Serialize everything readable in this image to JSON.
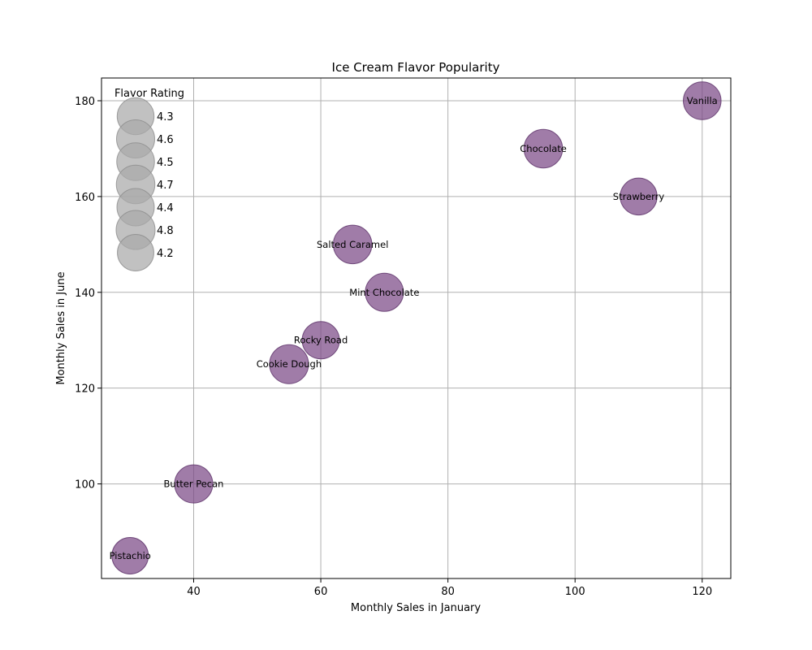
{
  "chart_data": {
    "type": "scatter",
    "title": "Ice Cream Flavor Popularity",
    "xlabel": "Monthly Sales in January",
    "ylabel": "Monthly Sales in June",
    "xlim": [
      25.5,
      124.5
    ],
    "ylim": [
      80.25,
      184.75
    ],
    "xticks": [
      40,
      60,
      80,
      100,
      120
    ],
    "yticks": [
      100,
      120,
      140,
      160,
      180
    ],
    "grid": true,
    "marker_color": "#7b4a87",
    "legend": {
      "title": "Flavor Rating",
      "placement": "top-left",
      "marker_color": "#a9a9a9",
      "entries": [
        "4.3",
        "4.6",
        "4.5",
        "4.7",
        "4.4",
        "4.8",
        "4.2"
      ]
    },
    "points": [
      {
        "label": "Vanilla",
        "x": 120,
        "y": 180,
        "rating": 4.5
      },
      {
        "label": "Chocolate",
        "x": 95,
        "y": 170,
        "rating": 4.7
      },
      {
        "label": "Strawberry",
        "x": 110,
        "y": 160,
        "rating": 4.3
      },
      {
        "label": "Salted Caramel",
        "x": 65,
        "y": 150,
        "rating": 4.7
      },
      {
        "label": "Mint Chocolate",
        "x": 70,
        "y": 140,
        "rating": 4.6
      },
      {
        "label": "Rocky Road",
        "x": 60,
        "y": 130,
        "rating": 4.4
      },
      {
        "label": "Cookie Dough",
        "x": 55,
        "y": 125,
        "rating": 4.8
      },
      {
        "label": "Butter Pecan",
        "x": 40,
        "y": 100,
        "rating": 4.6
      },
      {
        "label": "Pistachio",
        "x": 30,
        "y": 85,
        "rating": 4.2
      }
    ]
  }
}
